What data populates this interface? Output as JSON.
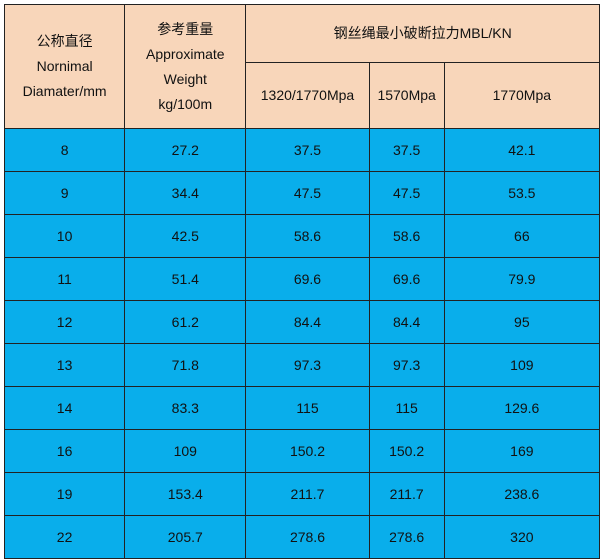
{
  "headers": {
    "diameter": {
      "line1": "公称直径",
      "line2": "Nornimal",
      "line3": "Diamater/mm"
    },
    "weight": {
      "line1": "参考重量",
      "line2": "Approximate",
      "line3": "Weight",
      "line4": "kg/100m"
    },
    "mbl_group": "钢丝绳最小破断拉力MBL/KN",
    "grade1": "1320/1770Mpa",
    "grade2": "1570Mpa",
    "grade3": "1770Mpa"
  },
  "rows": [
    [
      "8",
      "27.2",
      "37.5",
      "37.5",
      "42.1"
    ],
    [
      "9",
      "34.4",
      "47.5",
      "47.5",
      "53.5"
    ],
    [
      "10",
      "42.5",
      "58.6",
      "58.6",
      "66"
    ],
    [
      "11",
      "51.4",
      "69.6",
      "69.6",
      "79.9"
    ],
    [
      "12",
      "61.2",
      "84.4",
      "84.4",
      "95"
    ],
    [
      "13",
      "71.8",
      "97.3",
      "97.3",
      "109"
    ],
    [
      "14",
      "83.3",
      "115",
      "115",
      "129.6"
    ],
    [
      "16",
      "109",
      "150.2",
      "150.2",
      "169"
    ],
    [
      "19",
      "153.4",
      "211.7",
      "211.7",
      "238.6"
    ],
    [
      "22",
      "205.7",
      "278.6",
      "278.6",
      "320"
    ]
  ],
  "colors": {
    "header_bg": "#f8d6ba",
    "body_bg": "#09aeeb",
    "border": "#222222"
  }
}
